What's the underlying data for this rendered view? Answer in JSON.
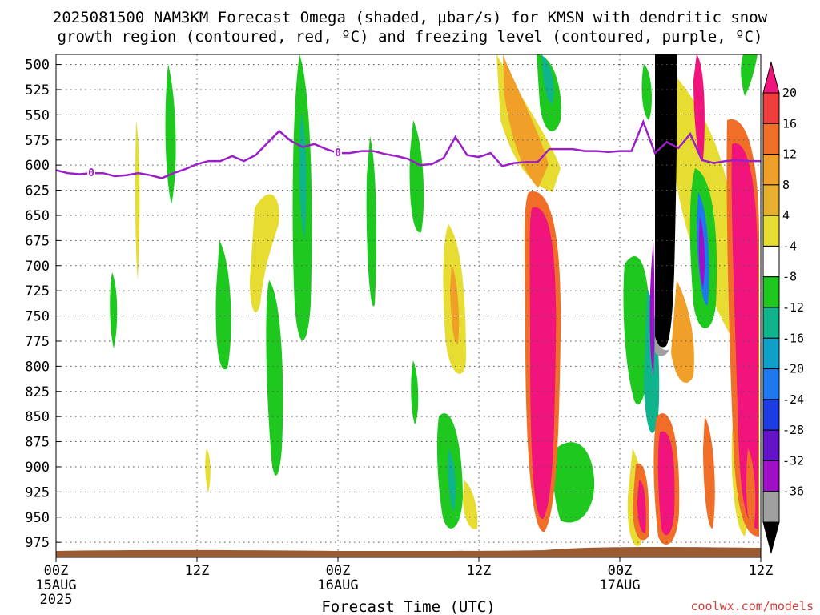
{
  "title": {
    "line1": "2025081500 NAM3KM Forecast Omega (shaded, µbar/s) for KMSN with dendritic snow",
    "line2": "growth region (contoured, red, ºC) and freezing level (contoured, purple, ºC)"
  },
  "credit": "coolwx.com/models",
  "colors": {
    "freezing_level": "#9a1fc8",
    "ground": "#9b5a32",
    "grid": "#555555"
  },
  "chart_data": {
    "type": "heatmap",
    "title": "2025081500 NAM3KM Forecast Omega (shaded, µbar/s) for KMSN with dendritic snow growth region (contoured, red, ºC) and freezing level (contoured, purple, ºC)",
    "xlabel": "Forecast Time (UTC)",
    "ylabel": "",
    "x_unit": "forecast hour",
    "xlim": [
      0,
      60
    ],
    "x_ticks": [
      {
        "x": 0,
        "label": "00Z",
        "sub": [
          "15AUG",
          "2025"
        ]
      },
      {
        "x": 12,
        "label": "12Z",
        "sub": []
      },
      {
        "x": 24,
        "label": "00Z",
        "sub": [
          "16AUG"
        ]
      },
      {
        "x": 36,
        "label": "12Z",
        "sub": []
      },
      {
        "x": 48,
        "label": "00Z",
        "sub": [
          "17AUG"
        ]
      },
      {
        "x": 60,
        "label": "12Z",
        "sub": []
      }
    ],
    "ylim": [
      990,
      490
    ],
    "y_ticks": [
      500,
      525,
      550,
      575,
      600,
      625,
      650,
      675,
      700,
      725,
      750,
      775,
      800,
      825,
      850,
      875,
      900,
      925,
      950,
      975
    ],
    "colorbar": {
      "labels": [
        "20",
        "16",
        "12",
        "8",
        "4",
        "-4",
        "-8",
        "-12",
        "-16",
        "-20",
        "-24",
        "-28",
        "-32",
        "-36"
      ],
      "colors": [
        "#f0147c",
        "#f03c3c",
        "#f06e28",
        "#f0a028",
        "#e6af2d",
        "#e6dc32",
        "#ffffff",
        "#1ec81e",
        "#0fb48c",
        "#0fa0c8",
        "#1e78f0",
        "#1e3ce6",
        "#6414c8",
        "#a00fc8",
        "#a0a0a0",
        "#000000"
      ]
    },
    "freezing_level": {
      "label": "0",
      "x": [
        0,
        1,
        2,
        3,
        4,
        5,
        6,
        7,
        8,
        9,
        10,
        11,
        12,
        13,
        14,
        15,
        16,
        17,
        18,
        19,
        20,
        21,
        22,
        23,
        24,
        25,
        26,
        27,
        28,
        29,
        30,
        31,
        32,
        33,
        34,
        35,
        36,
        37,
        38,
        39,
        40,
        41,
        42,
        43,
        44,
        45,
        46,
        47,
        48,
        49,
        50,
        51,
        52,
        53,
        54,
        55,
        56,
        57,
        58,
        59,
        60
      ],
      "y": [
        605,
        608,
        609,
        608,
        608,
        611,
        610,
        608,
        610,
        613,
        608,
        604,
        599,
        596,
        596,
        591,
        596,
        590,
        578,
        566,
        576,
        582,
        579,
        584,
        588,
        588,
        586,
        586,
        589,
        591,
        594,
        600,
        599,
        593,
        572,
        590,
        592,
        588,
        601,
        598,
        597,
        597,
        584,
        584,
        584,
        586,
        586,
        587,
        586,
        586,
        557,
        588,
        577,
        583,
        569,
        595,
        598,
        596,
        595,
        596,
        596
      ]
    },
    "shaded_regions": [
      {
        "name": "upward-omega-core",
        "x": [
          40,
          44
        ],
        "p": [
          610,
          975
        ],
        "value": 20
      },
      {
        "name": "upward-omega-east",
        "x": [
          58,
          60
        ],
        "p": [
          560,
          965
        ],
        "value": 20
      },
      {
        "name": "strong-descent-column",
        "x": [
          51.5,
          53
        ],
        "p": [
          490,
          760
        ],
        "value": -36
      }
    ]
  }
}
